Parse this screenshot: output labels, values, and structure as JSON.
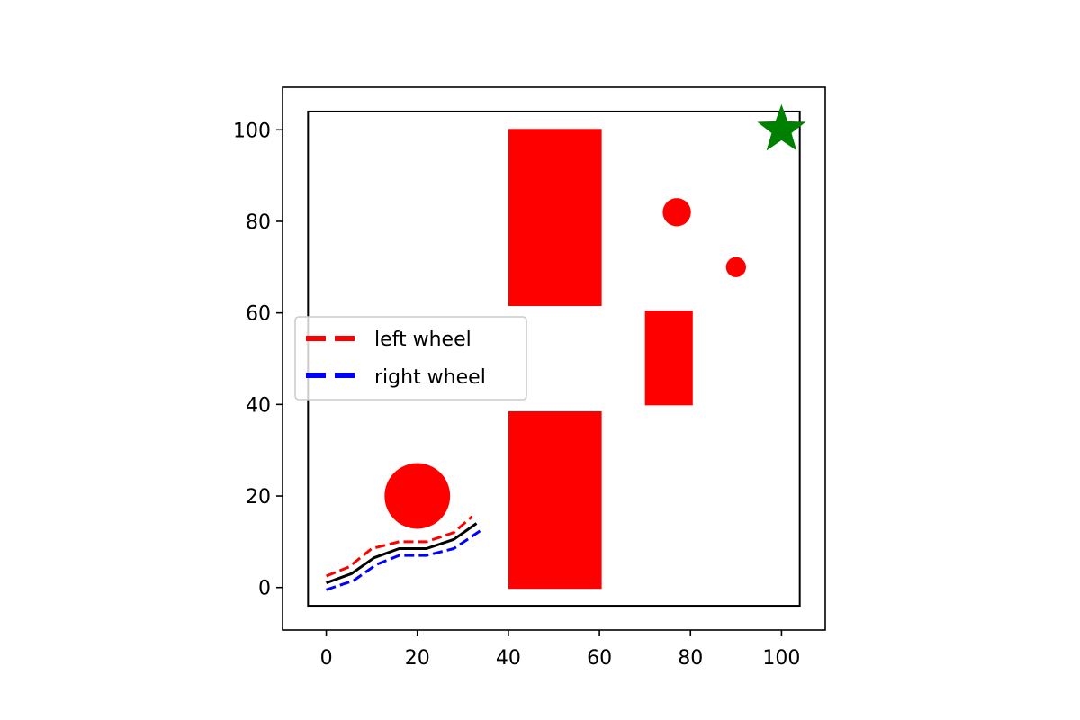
{
  "chart_data": {
    "type": "line",
    "title": "",
    "xlabel": "",
    "ylabel": "",
    "xlim": [
      -9.6,
      109.6
    ],
    "ylim": [
      -9.3,
      109.3
    ],
    "xticks": [
      0,
      20,
      40,
      60,
      80,
      100
    ],
    "yticks": [
      0,
      20,
      40,
      60,
      80,
      100
    ],
    "grid": false,
    "legend": {
      "placement": "center-left"
    },
    "boundary": {
      "x": [
        -4,
        104
      ],
      "y": [
        -4,
        104
      ],
      "color": "#000000"
    },
    "obstacles": {
      "color": "#ff0000",
      "rectangles": [
        {
          "x": [
            40,
            60.5
          ],
          "y": [
            -0.3,
            38.5
          ]
        },
        {
          "x": [
            40,
            60.5
          ],
          "y": [
            61.5,
            100.2
          ]
        },
        {
          "x": [
            70,
            80.5
          ],
          "y": [
            39.8,
            60.5
          ]
        }
      ],
      "circles": [
        {
          "cx": 20,
          "cy": 20,
          "r": 7.2
        },
        {
          "cx": 77,
          "cy": 82,
          "r": 3.1
        },
        {
          "cx": 90,
          "cy": 70,
          "r": 2.2
        }
      ]
    },
    "goal": {
      "x": 100,
      "y": 100,
      "color": "#008000",
      "marker": "star"
    },
    "series": [
      {
        "name": "left wheel",
        "color": "#ff0000",
        "style": "dashed",
        "x": [
          0,
          5,
          10,
          16,
          22,
          28,
          32
        ],
        "y": [
          2.5,
          4.5,
          8.5,
          10,
          10,
          12,
          15.5
        ]
      },
      {
        "name": "right wheel",
        "color": "#0000ff",
        "style": "dashed",
        "x": [
          0,
          6,
          11,
          16,
          22,
          28,
          34
        ],
        "y": [
          -0.5,
          1.5,
          5,
          7,
          7,
          8.5,
          12.5
        ]
      },
      {
        "color": "#000000",
        "style": "solid",
        "x": [
          0,
          5.5,
          10.5,
          16,
          22,
          28,
          33
        ],
        "y": [
          1,
          3,
          6.5,
          8.5,
          8.5,
          10.5,
          14
        ]
      }
    ]
  }
}
